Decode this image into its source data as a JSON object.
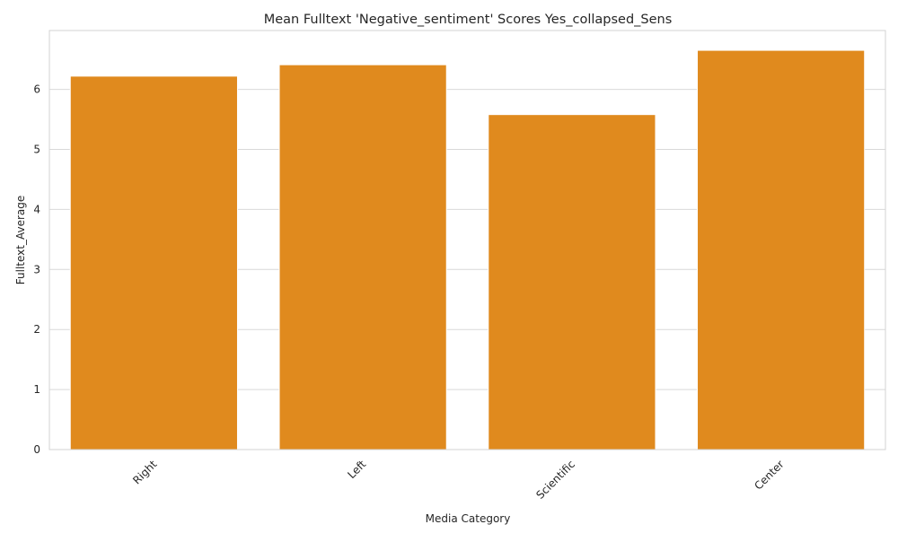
{
  "chart_data": {
    "type": "bar",
    "title": "Mean Fulltext 'Negative_sentiment' Scores Yes_collapsed_Sens",
    "xlabel": "Media Category",
    "ylabel": "Fulltext_Average",
    "categories": [
      "Right",
      "Left",
      "Scientific",
      "Center"
    ],
    "values": [
      6.22,
      6.41,
      5.58,
      6.65
    ],
    "ylim": [
      0,
      6.98
    ],
    "yticks": [
      0,
      1,
      2,
      3,
      4,
      5,
      6
    ],
    "grid": "horizontal",
    "bar_color": "#e08a1e",
    "grid_color": "#d9d9d9",
    "legend": "none"
  }
}
